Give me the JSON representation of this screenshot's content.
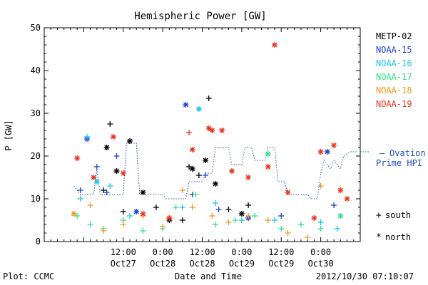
{
  "chart_data": {
    "type": "scatter",
    "title": "Hemispheric Power [GW]",
    "ylabel": "P [GW]",
    "xlabel": "Date and Time",
    "ylim": [
      0,
      50
    ],
    "yticks": [
      0,
      10,
      20,
      30,
      40,
      50
    ],
    "x_start": "2012-10-26 12:00",
    "x_end": "2012-10-30 12:00",
    "xticks": [
      {
        "at": "2012-10-27 12:00",
        "line1": "12:00",
        "line2": "Oct27"
      },
      {
        "at": "2012-10-28 00:00",
        "line1": "0:00",
        "line2": "Oct28"
      },
      {
        "at": "2012-10-28 12:00",
        "line1": "12:00",
        "line2": "Oct28"
      },
      {
        "at": "2012-10-29 00:00",
        "line1": "0:00",
        "line2": "Oct29"
      },
      {
        "at": "2012-10-29 12:00",
        "line1": "12:00",
        "line2": "Oct29"
      },
      {
        "at": "2012-10-30 00:00",
        "line1": "0:00",
        "line2": "Oct30"
      }
    ],
    "footer_left": "Plot: CCMC",
    "footer_right": "2012/10/30 07:10:07",
    "marker_legend": [
      {
        "symbol": "+",
        "label": "south"
      },
      {
        "symbol": "*",
        "label": "north"
      }
    ],
    "ovation_label_line1": "Ovation",
    "ovation_label_line2": "Prime HPI",
    "ovation_color": "#1f4fb5",
    "series": [
      {
        "name": "METP-02",
        "color": "#000000",
        "points": [
          [
            "2012-10-27 06:00",
            12,
            "+"
          ],
          [
            "2012-10-27 08:00",
            27.5,
            "+"
          ],
          [
            "2012-10-27 07:00",
            22,
            "*"
          ],
          [
            "2012-10-27 10:00",
            16.5,
            "*"
          ],
          [
            "2012-10-27 12:00",
            7,
            "+"
          ],
          [
            "2012-10-27 14:00",
            23.5,
            "*"
          ],
          [
            "2012-10-27 18:00",
            11.5,
            "*"
          ],
          [
            "2012-10-27 22:00",
            8,
            "+"
          ],
          [
            "2012-10-28 02:00",
            5,
            "*"
          ],
          [
            "2012-10-28 06:00",
            5,
            "+"
          ],
          [
            "2012-10-28 08:00",
            17.5,
            "+"
          ],
          [
            "2012-10-28 09:00",
            17,
            "*"
          ],
          [
            "2012-10-28 11:00",
            15.5,
            "+"
          ],
          [
            "2012-10-28 13:00",
            19,
            "*"
          ],
          [
            "2012-10-28 14:00",
            33.5,
            "+"
          ],
          [
            "2012-10-28 16:00",
            13.5,
            "*"
          ],
          [
            "2012-10-28 20:00",
            7.5,
            "+"
          ],
          [
            "2012-10-29 00:00",
            6.5,
            "*"
          ],
          [
            "2012-10-29 02:00",
            8.5,
            "+"
          ]
        ]
      },
      {
        "name": "NOAA-15",
        "color": "#1f3fd0",
        "points": [
          [
            "2012-10-26 23:00",
            12,
            "+"
          ],
          [
            "2012-10-27 01:00",
            24,
            "*"
          ],
          [
            "2012-10-27 04:00",
            17.5,
            "+"
          ],
          [
            "2012-10-27 07:00",
            11.5,
            "+"
          ],
          [
            "2012-10-27 10:00",
            20,
            "+"
          ],
          [
            "2012-10-27 16:00",
            7,
            "*"
          ],
          [
            "2012-10-28 07:00",
            32,
            "*"
          ],
          [
            "2012-10-28 09:00",
            11,
            "+"
          ],
          [
            "2012-10-28 13:00",
            15.5,
            "+"
          ],
          [
            "2012-10-28 17:00",
            7.5,
            "+"
          ],
          [
            "2012-10-29 02:00",
            5.5,
            "*"
          ],
          [
            "2012-10-29 12:00",
            6,
            "+"
          ],
          [
            "2012-10-30 02:00",
            21,
            "*"
          ],
          [
            "2012-10-30 04:00",
            8.5,
            "+"
          ]
        ]
      },
      {
        "name": "NOAA-16",
        "color": "#17c7e6",
        "points": [
          [
            "2012-10-26 23:00",
            10,
            "+"
          ],
          [
            "2012-10-27 01:00",
            24.5,
            "+"
          ],
          [
            "2012-10-27 04:00",
            14,
            "*"
          ],
          [
            "2012-10-27 08:00",
            13,
            "+"
          ],
          [
            "2012-10-27 14:00",
            6,
            "+"
          ],
          [
            "2012-10-28 06:00",
            8,
            "+"
          ],
          [
            "2012-10-28 11:00",
            31,
            "*"
          ],
          [
            "2012-10-28 16:00",
            9,
            "+"
          ],
          [
            "2012-10-29 00:00",
            5,
            "+"
          ],
          [
            "2012-10-29 10:00",
            5,
            "+"
          ],
          [
            "2012-10-30 00:00",
            4.5,
            "+"
          ],
          [
            "2012-10-30 05:00",
            3,
            "+"
          ]
        ]
      },
      {
        "name": "NOAA-17",
        "color": "#33e08a",
        "points": [
          [
            "2012-10-26 22:00",
            6,
            "+"
          ],
          [
            "2012-10-27 02:00",
            4,
            "+"
          ],
          [
            "2012-10-27 06:00",
            3,
            "+"
          ],
          [
            "2012-10-27 12:00",
            5,
            "+"
          ],
          [
            "2012-10-27 18:00",
            2.5,
            "+"
          ],
          [
            "2012-10-28 00:00",
            3,
            "+"
          ],
          [
            "2012-10-28 04:00",
            8,
            "+"
          ],
          [
            "2012-10-28 10:00",
            11,
            "+"
          ],
          [
            "2012-10-28 16:00",
            4,
            "+"
          ],
          [
            "2012-10-28 22:00",
            5,
            "+"
          ],
          [
            "2012-10-29 04:00",
            6,
            "+"
          ],
          [
            "2012-10-29 08:00",
            20.5,
            "*"
          ],
          [
            "2012-10-29 12:00",
            3,
            "+"
          ],
          [
            "2012-10-29 18:00",
            4,
            "+"
          ],
          [
            "2012-10-30 00:00",
            3,
            "+"
          ],
          [
            "2012-10-30 06:00",
            6,
            "*"
          ]
        ]
      },
      {
        "name": "NOAA-18",
        "color": "#f0961f",
        "points": [
          [
            "2012-10-26 21:00",
            6.5,
            "*"
          ],
          [
            "2012-10-27 02:00",
            8.5,
            "+"
          ],
          [
            "2012-10-27 06:00",
            2.5,
            "+"
          ],
          [
            "2012-10-27 12:00",
            4,
            "+"
          ],
          [
            "2012-10-27 18:00",
            6,
            "+"
          ],
          [
            "2012-10-28 00:00",
            3.5,
            "+"
          ],
          [
            "2012-10-28 06:00",
            12,
            "+"
          ],
          [
            "2012-10-28 09:00",
            8,
            "+"
          ],
          [
            "2012-10-28 15:00",
            6,
            "+"
          ],
          [
            "2012-10-28 20:00",
            4.5,
            "+"
          ],
          [
            "2012-10-29 02:00",
            6,
            "+"
          ],
          [
            "2012-10-29 08:00",
            5,
            "+"
          ],
          [
            "2012-10-29 14:00",
            2,
            "+"
          ],
          [
            "2012-10-29 20:00",
            1,
            "+"
          ],
          [
            "2012-10-30 00:00",
            13,
            "+"
          ]
        ]
      },
      {
        "name": "NOAA-19",
        "color": "#e8341c",
        "points": [
          [
            "2012-10-26 22:00",
            19.5,
            "*"
          ],
          [
            "2012-10-27 03:00",
            15,
            "*"
          ],
          [
            "2012-10-27 09:00",
            24.5,
            "*"
          ],
          [
            "2012-10-27 12:00",
            16,
            "*"
          ],
          [
            "2012-10-27 18:00",
            6.5,
            "*"
          ],
          [
            "2012-10-28 02:00",
            5.5,
            "*"
          ],
          [
            "2012-10-28 08:00",
            25.5,
            "+"
          ],
          [
            "2012-10-28 09:00",
            21.5,
            "*"
          ],
          [
            "2012-10-28 14:00",
            26.5,
            "*"
          ],
          [
            "2012-10-28 15:00",
            26,
            "*"
          ],
          [
            "2012-10-28 18:00",
            26,
            "*"
          ],
          [
            "2012-10-28 21:00",
            16.5,
            "*"
          ],
          [
            "2012-10-29 02:00",
            15,
            "*"
          ],
          [
            "2012-10-29 08:00",
            17.5,
            "*"
          ],
          [
            "2012-10-29 10:00",
            46,
            "*"
          ],
          [
            "2012-10-29 14:00",
            11.5,
            "*"
          ],
          [
            "2012-10-29 22:00",
            5.5,
            "*"
          ],
          [
            "2012-10-30 00:00",
            21,
            "*"
          ],
          [
            "2012-10-30 04:00",
            22.5,
            "*"
          ],
          [
            "2012-10-30 06:00",
            12,
            "*"
          ],
          [
            "2012-10-30 08:00",
            10,
            "*"
          ]
        ]
      }
    ],
    "ovation": [
      [
        "2012-10-26 21:00",
        13
      ],
      [
        "2012-10-26 23:00",
        11
      ],
      [
        "2012-10-27 03:00",
        11
      ],
      [
        "2012-10-27 04:00",
        17
      ],
      [
        "2012-10-27 05:00",
        11
      ],
      [
        "2012-10-27 12:00",
        11
      ],
      [
        "2012-10-27 13:00",
        23
      ],
      [
        "2012-10-27 16:00",
        23
      ],
      [
        "2012-10-27 17:00",
        11
      ],
      [
        "2012-10-28 00:00",
        11
      ],
      [
        "2012-10-28 01:00",
        10
      ],
      [
        "2012-10-28 07:00",
        10
      ],
      [
        "2012-10-28 08:00",
        14
      ],
      [
        "2012-10-28 12:00",
        14
      ],
      [
        "2012-10-28 13:00",
        16
      ],
      [
        "2012-10-28 15:00",
        16
      ],
      [
        "2012-10-28 16:00",
        22
      ],
      [
        "2012-10-28 20:00",
        22
      ],
      [
        "2012-10-28 21:00",
        18
      ],
      [
        "2012-10-29 00:00",
        18
      ],
      [
        "2012-10-29 01:00",
        22
      ],
      [
        "2012-10-29 03:00",
        22
      ],
      [
        "2012-10-29 04:00",
        19
      ],
      [
        "2012-10-29 07:00",
        19
      ],
      [
        "2012-10-29 08:00",
        22
      ],
      [
        "2012-10-29 10:00",
        22
      ],
      [
        "2012-10-29 11:00",
        14
      ],
      [
        "2012-10-29 13:00",
        14
      ],
      [
        "2012-10-29 14:00",
        11
      ],
      [
        "2012-10-29 20:00",
        11
      ],
      [
        "2012-10-29 21:00",
        10
      ],
      [
        "2012-10-29 23:00",
        10
      ],
      [
        "2012-10-30 00:00",
        16
      ],
      [
        "2012-10-30 01:00",
        19
      ],
      [
        "2012-10-30 03:00",
        17
      ],
      [
        "2012-10-30 04:00",
        19
      ],
      [
        "2012-10-30 06:00",
        17
      ],
      [
        "2012-10-30 07:00",
        20
      ],
      [
        "2012-10-30 09:00",
        21
      ],
      [
        "2012-10-30 11:00",
        21
      ]
    ]
  }
}
